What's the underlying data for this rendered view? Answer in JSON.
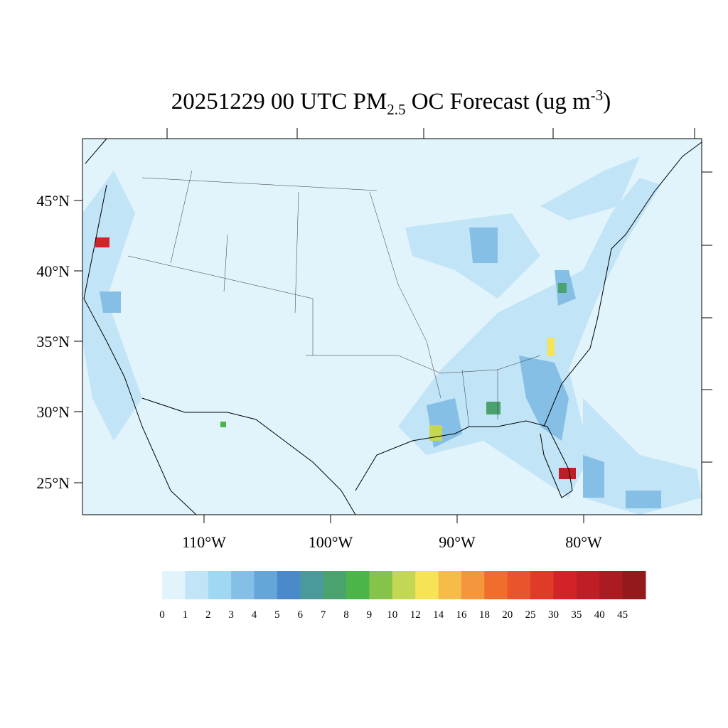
{
  "title": {
    "prefix": "20251229 00 UTC PM",
    "sub": "2.5",
    "middle": " OC Forecast (ug m",
    "sup": "-3",
    "suffix": ")"
  },
  "lat_labels": [
    "45°N",
    "40°N",
    "35°N",
    "30°N",
    "25°N"
  ],
  "lon_labels": [
    "110°W",
    "100°W",
    "90°W",
    "80°W"
  ],
  "colorbar": {
    "levels": [
      0,
      1,
      2,
      3,
      4,
      5,
      6,
      7,
      8,
      9,
      10,
      12,
      14,
      16,
      18,
      20,
      25,
      30,
      35,
      40,
      45
    ],
    "colors": [
      "#e1f3fb",
      "#c1e4f6",
      "#a0d8f3",
      "#85bfe6",
      "#64a6d8",
      "#4a8acb",
      "#4a9a9c",
      "#4aa36e",
      "#4cb549",
      "#86c34b",
      "#c3d755",
      "#f6e356",
      "#f6bc4a",
      "#f4963c",
      "#ef6d2d",
      "#e9542a",
      "#e03b27",
      "#d42229",
      "#bf1e26",
      "#ab1b22",
      "#921a1d"
    ]
  }
}
